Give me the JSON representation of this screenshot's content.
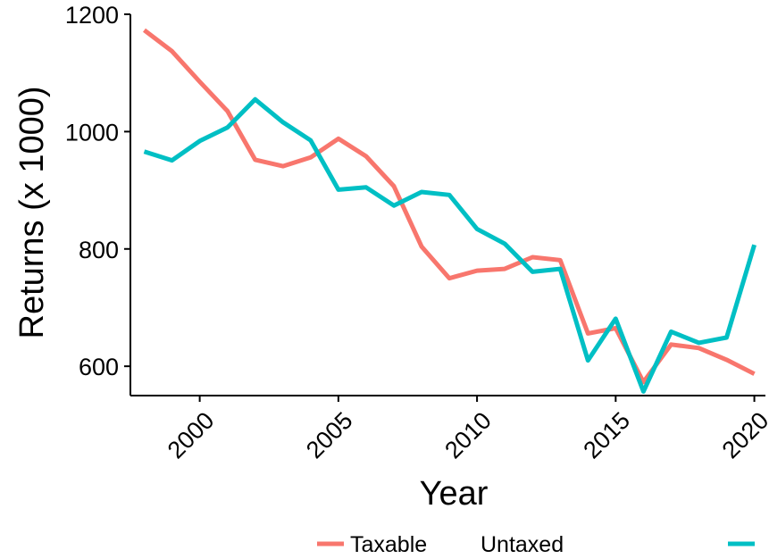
{
  "chart_data": {
    "type": "line",
    "xlabel": "Year",
    "ylabel": "Returns (x 1000)",
    "xlim": [
      1997.5,
      2020.4
    ],
    "ylim": [
      550,
      1200
    ],
    "x_ticks": [
      2000,
      2005,
      2010,
      2015,
      2020
    ],
    "y_ticks": [
      600,
      800,
      1000,
      1200
    ],
    "grid": false,
    "legend_position": "bottom",
    "series": [
      {
        "name": "Taxable",
        "color": "#F8766D",
        "x": [
          1998,
          1999,
          2000,
          2001,
          2002,
          2003,
          2004,
          2005,
          2006,
          2007,
          2008,
          2009,
          2010,
          2011,
          2012,
          2013,
          2014,
          2015,
          2016,
          2017,
          2018,
          2019,
          2020
        ],
        "y": [
          1173,
          1137,
          1085,
          1035,
          952,
          941,
          956,
          988,
          958,
          907,
          804,
          750,
          763,
          766,
          786,
          781,
          656,
          665,
          573,
          637,
          631,
          611,
          587
        ]
      },
      {
        "name": "Untaxed",
        "color": "#00BFC4",
        "x": [
          1998,
          1999,
          2000,
          2001,
          2002,
          2003,
          2004,
          2005,
          2006,
          2007,
          2008,
          2009,
          2010,
          2011,
          2012,
          2013,
          2014,
          2015,
          2016,
          2017,
          2018,
          2019,
          2020
        ],
        "y": [
          966,
          951,
          984,
          1007,
          1055,
          1016,
          985,
          901,
          905,
          874,
          897,
          892,
          834,
          809,
          761,
          766,
          610,
          681,
          557,
          659,
          640,
          649,
          807
        ]
      }
    ]
  }
}
